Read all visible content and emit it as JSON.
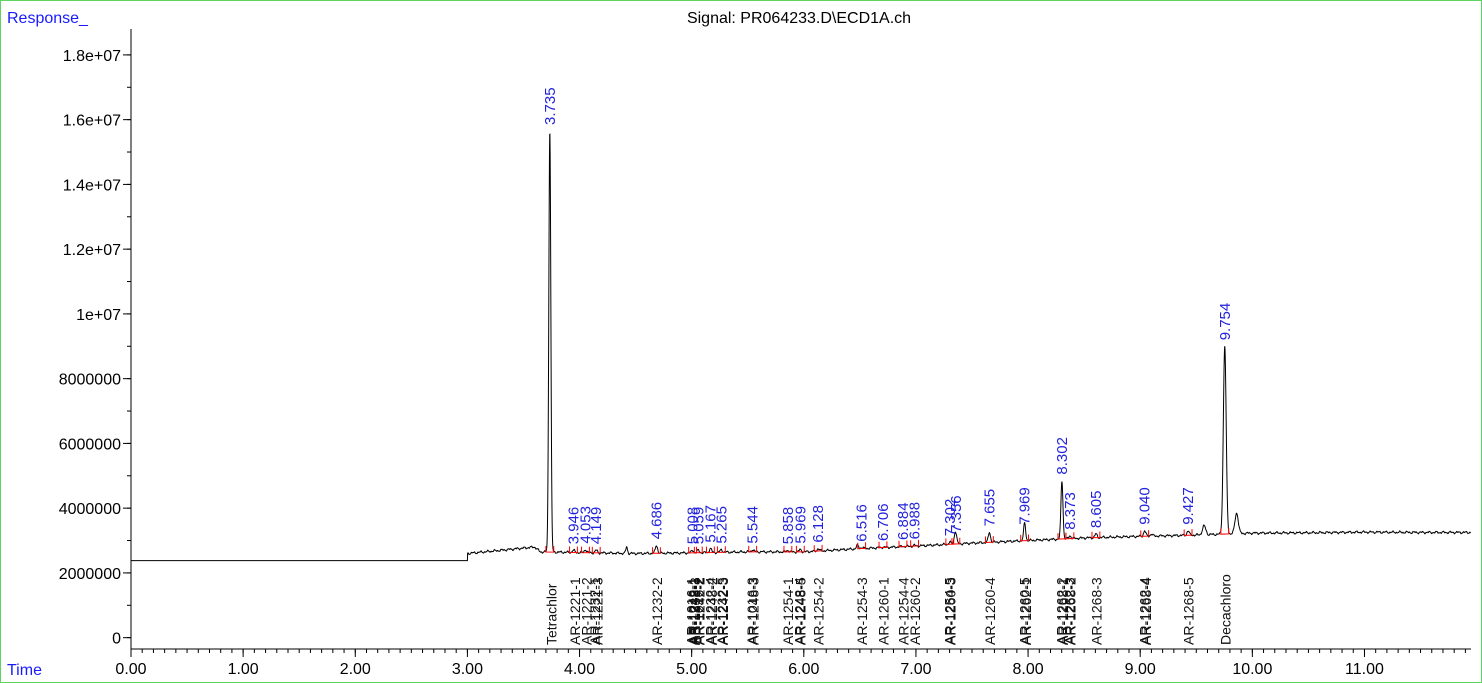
{
  "window": {
    "signal_title": "Signal: PR064233.D\\ECD1A.ch"
  },
  "axes": {
    "y_corner_label": "Response_",
    "x_corner_label": "Time"
  },
  "colors": {
    "frame": "#5fd35f",
    "corner_text": "#1a1aff",
    "peak_label": "#2222dd",
    "trace": "#000000",
    "baseline": "#ff0000"
  },
  "chart_data": {
    "type": "line",
    "title": "Signal: PR064233.D\\ECD1A.ch",
    "xlabel": "Time",
    "ylabel": "Response_",
    "xlim": [
      0.0,
      11.95
    ],
    "ylim": [
      -350000,
      18800000
    ],
    "x_ticks": [
      "0.00",
      "1.00",
      "2.00",
      "3.00",
      "4.00",
      "5.00",
      "6.00",
      "7.00",
      "8.00",
      "9.00",
      "10.00",
      "11.00"
    ],
    "y_ticks": [
      "0",
      "2000000",
      "4000000",
      "6000000",
      "8000000",
      "1e+07",
      "1.2e+07",
      "1.4e+07",
      "1.6e+07",
      "1.8e+07"
    ],
    "grid": false,
    "legend": "none",
    "baseline_segments": [
      [
        0.0,
        2380000
      ],
      [
        3.0,
        2380000
      ],
      [
        3.0,
        2600000
      ],
      [
        3.3,
        2700000
      ],
      [
        3.6,
        2800000
      ],
      [
        3.65,
        2650000
      ],
      [
        4.5,
        2600000
      ],
      [
        5.0,
        2620000
      ],
      [
        5.5,
        2650000
      ],
      [
        6.0,
        2650000
      ],
      [
        6.5,
        2750000
      ],
      [
        7.0,
        2830000
      ],
      [
        7.5,
        2920000
      ],
      [
        8.0,
        3000000
      ],
      [
        8.5,
        3080000
      ],
      [
        9.0,
        3130000
      ],
      [
        9.5,
        3170000
      ],
      [
        10.0,
        3230000
      ],
      [
        10.5,
        3240000
      ],
      [
        11.0,
        3260000
      ],
      [
        11.5,
        3250000
      ],
      [
        11.95,
        3250000
      ]
    ],
    "peaks": [
      {
        "rt": 3.735,
        "label": "3.735",
        "height": 15650000,
        "width": 0.018
      },
      {
        "rt": 3.946,
        "label": "3.946",
        "height": 2700000,
        "width": 0.02
      },
      {
        "rt": 4.053,
        "label": "4.053",
        "height": 2720000,
        "width": 0.02
      },
      {
        "rt": 4.149,
        "label": "4.149",
        "height": 2700000,
        "width": 0.02
      },
      {
        "rt": 4.686,
        "label": "4.686",
        "height": 2850000,
        "width": 0.02
      },
      {
        "rt": 5.008,
        "label": "5.008",
        "height": 2700000,
        "width": 0.02
      },
      {
        "rt": 5.059,
        "label": "5.059",
        "height": 2700000,
        "width": 0.02
      },
      {
        "rt": 5.167,
        "label": "5.167",
        "height": 2750000,
        "width": 0.02
      },
      {
        "rt": 5.265,
        "label": "5.265",
        "height": 2720000,
        "width": 0.02
      },
      {
        "rt": 5.544,
        "label": "5.544",
        "height": 2720000,
        "width": 0.02
      },
      {
        "rt": 5.858,
        "label": "5.858",
        "height": 2700000,
        "width": 0.02
      },
      {
        "rt": 5.969,
        "label": "5.969",
        "height": 2720000,
        "width": 0.02
      },
      {
        "rt": 6.128,
        "label": "6.128",
        "height": 2750000,
        "width": 0.02
      },
      {
        "rt": 6.516,
        "label": "6.516",
        "height": 2780000,
        "width": 0.02
      },
      {
        "rt": 6.706,
        "label": "6.706",
        "height": 2800000,
        "width": 0.02
      },
      {
        "rt": 6.884,
        "label": "6.884",
        "height": 2830000,
        "width": 0.02
      },
      {
        "rt": 6.988,
        "label": "6.988",
        "height": 2850000,
        "width": 0.02
      },
      {
        "rt": 7.302,
        "label": "7.302",
        "height": 2950000,
        "width": 0.02
      },
      {
        "rt": 7.356,
        "label": "7.356",
        "height": 3050000,
        "width": 0.02
      },
      {
        "rt": 7.655,
        "label": "7.655",
        "height": 3250000,
        "width": 0.02
      },
      {
        "rt": 7.969,
        "label": "7.969",
        "height": 3300000,
        "width": 0.02
      },
      {
        "rt": 8.302,
        "label": "8.302",
        "height": 4850000,
        "width": 0.018
      },
      {
        "rt": 8.373,
        "label": "8.373",
        "height": 3150000,
        "width": 0.02
      },
      {
        "rt": 8.605,
        "label": "8.605",
        "height": 3200000,
        "width": 0.02
      },
      {
        "rt": 9.04,
        "label": "9.040",
        "height": 3300000,
        "width": 0.02
      },
      {
        "rt": 9.427,
        "label": "9.427",
        "height": 3300000,
        "width": 0.02
      },
      {
        "rt": 9.754,
        "label": "9.754",
        "height": 9000000,
        "width": 0.025
      }
    ],
    "extra_peaks": [
      {
        "rt": 4.42,
        "height": 2800000,
        "width": 0.015
      },
      {
        "rt": 6.48,
        "height": 2850000,
        "width": 0.02
      },
      {
        "rt": 7.35,
        "height": 3150000,
        "width": 0.02
      },
      {
        "rt": 7.97,
        "height": 3250000,
        "width": 0.015
      },
      {
        "rt": 9.1,
        "height": 3200000,
        "width": 0.02
      },
      {
        "rt": 9.57,
        "height": 3450000,
        "width": 0.03
      },
      {
        "rt": 9.86,
        "height": 3850000,
        "width": 0.03
      }
    ],
    "compound_labels": [
      {
        "rt": 3.75,
        "name": "Tetrachlor"
      },
      {
        "rt": 3.96,
        "name": "AR-1221-1"
      },
      {
        "rt": 4.06,
        "name": "AR-1221-2"
      },
      {
        "rt": 4.14,
        "name": "AR-1232-1"
      },
      {
        "rt": 4.16,
        "name": "AR-1221-3"
      },
      {
        "rt": 4.69,
        "name": "AR-1232-2"
      },
      {
        "rt": 5.0,
        "name": "AR-1016-1"
      },
      {
        "rt": 5.01,
        "name": "AR-1242-1"
      },
      {
        "rt": 5.02,
        "name": "AR-1248-1"
      },
      {
        "rt": 5.03,
        "name": "AR-1232-3"
      },
      {
        "rt": 5.06,
        "name": "AR-1016-2"
      },
      {
        "rt": 5.07,
        "name": "AR-1242-2"
      },
      {
        "rt": 5.17,
        "name": "AR-1232-4"
      },
      {
        "rt": 5.18,
        "name": "AR-1248-2"
      },
      {
        "rt": 5.27,
        "name": "AR-1232-5"
      },
      {
        "rt": 5.28,
        "name": "AR-1242-3"
      },
      {
        "rt": 5.54,
        "name": "AR-1016-3"
      },
      {
        "rt": 5.55,
        "name": "AR-1248-3"
      },
      {
        "rt": 5.86,
        "name": "AR-1254-1"
      },
      {
        "rt": 5.96,
        "name": "AR-1248-4"
      },
      {
        "rt": 5.97,
        "name": "AR-1248-5"
      },
      {
        "rt": 6.13,
        "name": "AR-1254-2"
      },
      {
        "rt": 6.52,
        "name": "AR-1254-3"
      },
      {
        "rt": 6.71,
        "name": "AR-1260-1"
      },
      {
        "rt": 6.89,
        "name": "AR-1254-4"
      },
      {
        "rt": 6.99,
        "name": "AR-1260-2"
      },
      {
        "rt": 7.3,
        "name": "AR-1254-5"
      },
      {
        "rt": 7.31,
        "name": "AR-1260-3"
      },
      {
        "rt": 7.66,
        "name": "AR-1260-4"
      },
      {
        "rt": 7.97,
        "name": "AR-1260-5"
      },
      {
        "rt": 7.98,
        "name": "AR-1262-1"
      },
      {
        "rt": 8.3,
        "name": "AR-1262-2"
      },
      {
        "rt": 8.31,
        "name": "AR-1268-1"
      },
      {
        "rt": 8.37,
        "name": "AR-1262-3"
      },
      {
        "rt": 8.38,
        "name": "AR-1268-2"
      },
      {
        "rt": 8.61,
        "name": "AR-1268-3"
      },
      {
        "rt": 9.04,
        "name": "AR-1262-4"
      },
      {
        "rt": 9.05,
        "name": "AR-1268-4"
      },
      {
        "rt": 9.43,
        "name": "AR-1268-5"
      },
      {
        "rt": 9.76,
        "name": "Decachloro"
      }
    ]
  }
}
